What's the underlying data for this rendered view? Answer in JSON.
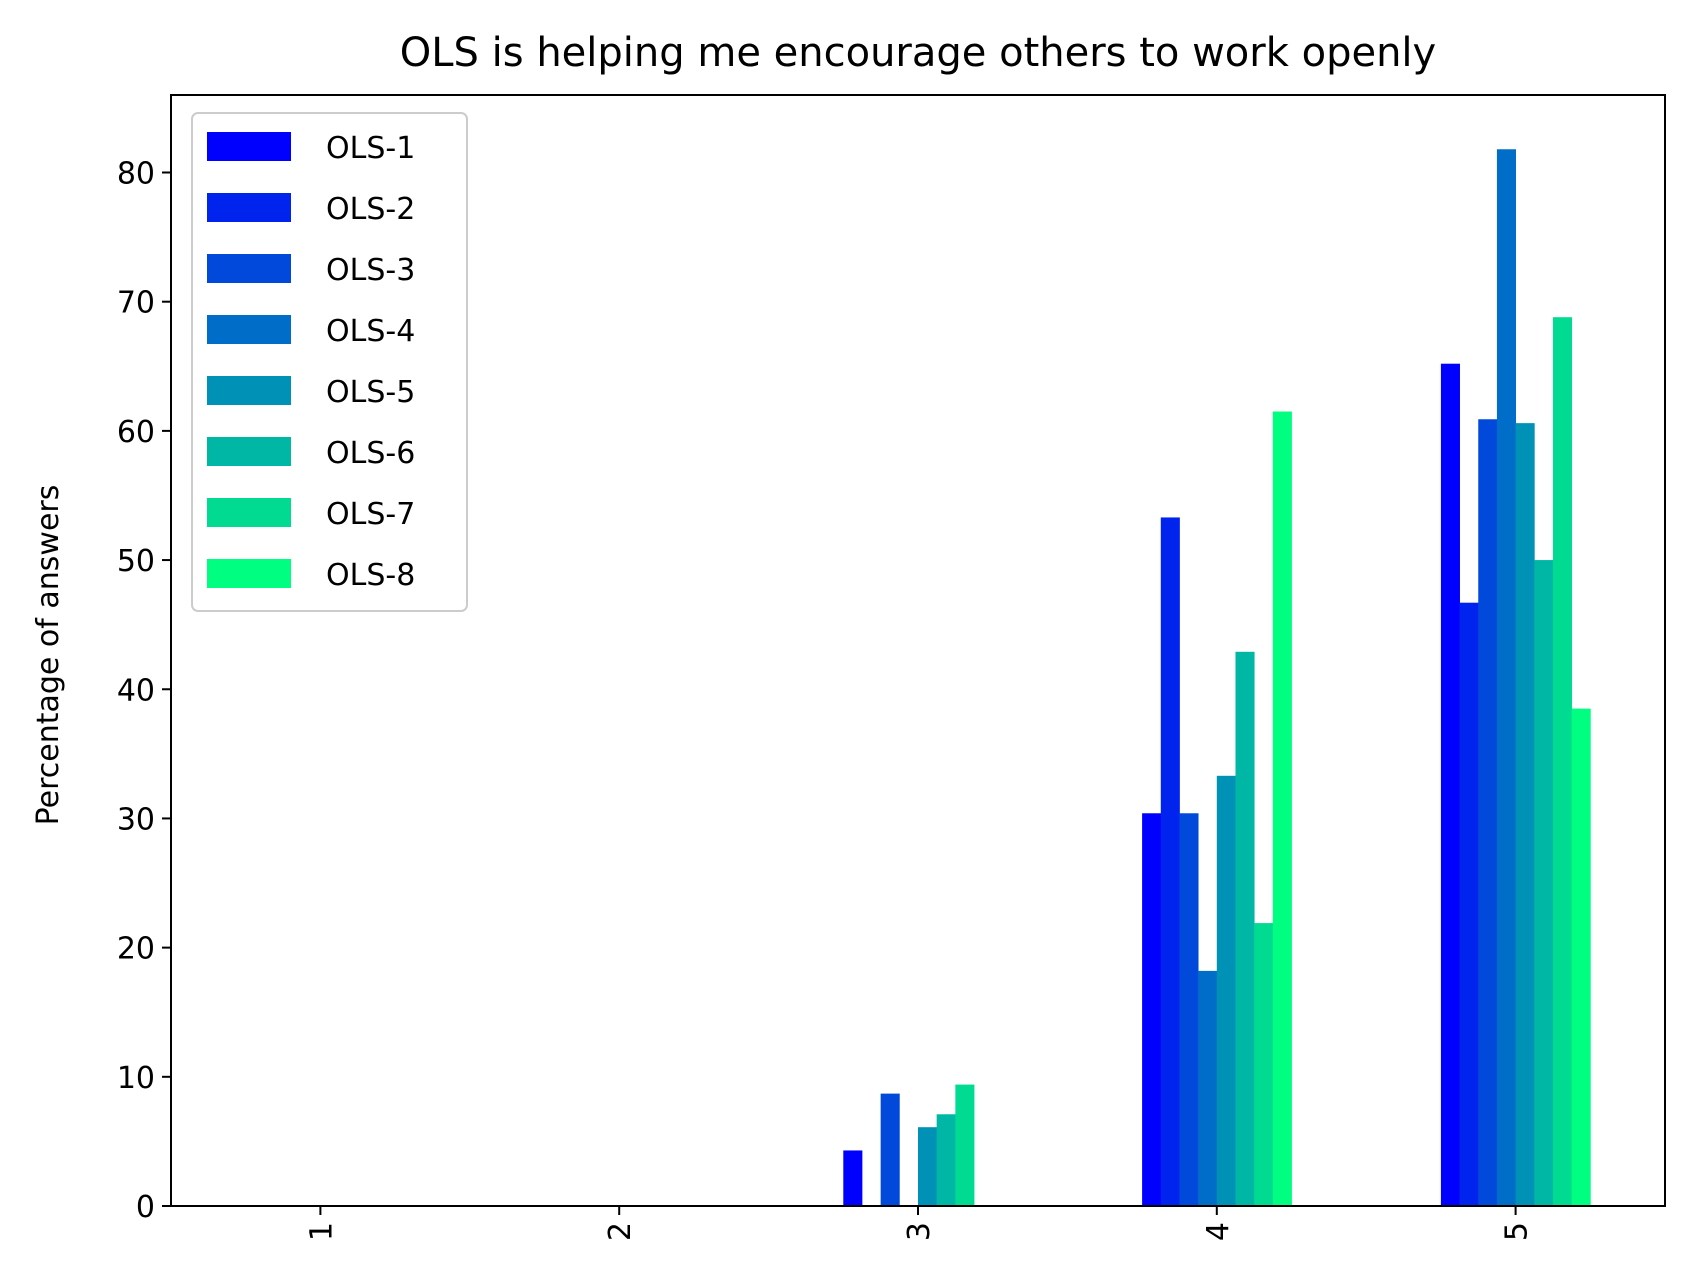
{
  "chart_data": {
    "type": "bar",
    "title": "OLS is helping me encourage others to work openly",
    "xlabel": "",
    "ylabel": "Percentage of answers",
    "categories": [
      "1",
      "2",
      "3",
      "4",
      "5"
    ],
    "ylim": [
      0,
      86
    ],
    "yticks": [
      0,
      10,
      20,
      30,
      40,
      50,
      60,
      70,
      80
    ],
    "grid": false,
    "legend_position": "upper-left",
    "series": [
      {
        "name": "OLS-1",
        "color": "#0000ff",
        "values": [
          0,
          0,
          4.3,
          30.4,
          65.2
        ]
      },
      {
        "name": "OLS-2",
        "color": "#0024ed",
        "values": [
          0,
          0,
          0,
          53.3,
          46.7
        ]
      },
      {
        "name": "OLS-3",
        "color": "#0049db",
        "values": [
          0,
          0,
          8.7,
          30.4,
          60.9
        ]
      },
      {
        "name": "OLS-4",
        "color": "#006dc8",
        "values": [
          0,
          0,
          0,
          18.2,
          81.8
        ]
      },
      {
        "name": "OLS-5",
        "color": "#0092b6",
        "values": [
          0,
          0,
          6.1,
          33.3,
          60.6
        ]
      },
      {
        "name": "OLS-6",
        "color": "#00b6a4",
        "values": [
          0,
          0,
          7.1,
          42.9,
          50.0
        ]
      },
      {
        "name": "OLS-7",
        "color": "#00db92",
        "values": [
          0,
          0,
          9.4,
          21.9,
          68.8
        ]
      },
      {
        "name": "OLS-8",
        "color": "#00ff80",
        "values": [
          0,
          0,
          0,
          61.5,
          38.5
        ]
      }
    ]
  }
}
